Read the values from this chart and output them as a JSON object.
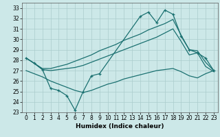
{
  "xlabel": "Humidex (Indice chaleur)",
  "background_color": "#cce8e8",
  "grid_color": "#aacccc",
  "line_color": "#1a7070",
  "xlim": [
    -0.5,
    23.5
  ],
  "ylim": [
    23,
    33.5
  ],
  "yticks": [
    23,
    24,
    25,
    26,
    27,
    28,
    29,
    30,
    31,
    32,
    33
  ],
  "xticks": [
    0,
    1,
    2,
    3,
    4,
    5,
    6,
    7,
    8,
    9,
    10,
    11,
    12,
    13,
    14,
    15,
    16,
    17,
    18,
    19,
    20,
    21,
    22,
    23
  ],
  "s1_x": [
    0,
    1,
    2,
    3,
    4,
    5,
    6,
    7,
    8,
    9,
    10,
    11,
    12,
    13,
    14,
    15,
    16,
    17,
    18,
    19,
    20,
    21,
    22,
    23
  ],
  "s1_y": [
    28.2,
    27.7,
    27.2,
    27.2,
    27.4,
    27.6,
    27.9,
    28.2,
    28.5,
    28.9,
    29.2,
    29.5,
    29.9,
    30.2,
    30.5,
    30.9,
    31.2,
    31.5,
    31.9,
    30.4,
    29.0,
    28.9,
    27.8,
    27.0
  ],
  "s2_x": [
    0,
    1,
    2,
    3,
    4,
    5,
    6,
    7,
    8,
    9,
    10,
    11,
    12,
    13,
    14,
    15,
    16,
    17,
    18,
    19,
    20,
    21,
    22,
    23
  ],
  "s2_y": [
    28.2,
    27.7,
    27.1,
    27.0,
    27.1,
    27.2,
    27.3,
    27.5,
    27.8,
    28.1,
    28.4,
    28.7,
    29.0,
    29.3,
    29.6,
    29.9,
    30.2,
    30.6,
    31.0,
    29.8,
    28.5,
    28.7,
    27.4,
    26.9
  ],
  "s3_x": [
    0,
    1,
    2,
    3,
    4,
    5,
    6,
    7,
    8,
    9,
    10,
    11,
    12,
    13,
    14,
    15,
    16,
    17,
    18,
    19,
    20,
    21,
    22,
    23
  ],
  "s3_y": [
    27.0,
    26.7,
    26.4,
    26.0,
    25.7,
    25.4,
    25.1,
    24.9,
    25.1,
    25.4,
    25.7,
    25.9,
    26.2,
    26.4,
    26.6,
    26.8,
    27.0,
    27.1,
    27.2,
    26.9,
    26.5,
    26.3,
    26.7,
    27.0
  ],
  "s4_x": [
    0,
    1,
    2,
    3,
    4,
    5,
    6,
    7,
    8,
    9,
    14,
    15,
    16,
    17,
    18,
    19,
    20,
    21,
    22,
    23
  ],
  "s4_y": [
    28.2,
    27.7,
    27.1,
    25.3,
    25.1,
    24.6,
    23.2,
    25.0,
    26.5,
    26.7,
    32.2,
    32.6,
    31.6,
    32.8,
    32.4,
    30.3,
    29.0,
    28.7,
    28.2,
    27.0
  ]
}
